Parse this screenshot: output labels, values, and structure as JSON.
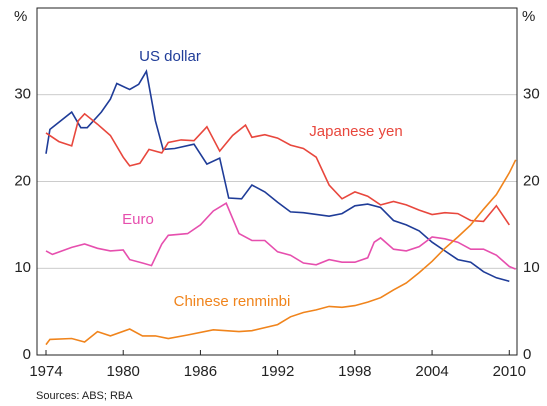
{
  "chart_data": {
    "type": "line",
    "y_unit": "%",
    "source": "Sources: ABS; RBA",
    "xlim": [
      1973.3,
      2010.6
    ],
    "xticks": [
      1974,
      1980,
      1986,
      1992,
      1998,
      2004,
      2010
    ],
    "ylim": [
      0,
      40
    ],
    "yticks": [
      0,
      10,
      20,
      30
    ],
    "grid": true,
    "series": [
      {
        "name": "US dollar",
        "color": "#1f3c98",
        "x": [
          1974,
          1974.3,
          1976,
          1976.7,
          1977.2,
          1978.3,
          1979,
          1979.5,
          1980.5,
          1981.2,
          1981.8,
          1982.5,
          1983.1,
          1984,
          1985.5,
          1986.5,
          1987.5,
          1988.2,
          1989.2,
          1990,
          1991,
          1992,
          1993,
          1994,
          1996,
          1997,
          1998,
          1999,
          2000,
          2001,
          2002,
          2003,
          2004,
          2005,
          2006,
          2007,
          2008,
          2009,
          2010
        ],
        "values": [
          23.2,
          26,
          28,
          26.2,
          26.2,
          28,
          29.5,
          31.3,
          30.6,
          31.2,
          32.7,
          27,
          23.7,
          23.8,
          24.3,
          22,
          22.7,
          18.1,
          18,
          19.6,
          18.8,
          17.6,
          16.5,
          16.4,
          16,
          16.3,
          17.2,
          17.4,
          17,
          15.5,
          15,
          14.3,
          13,
          12,
          11,
          10.7,
          9.6,
          8.9,
          8.5
        ]
      },
      {
        "name": "Japanese yen",
        "color": "#e8473d",
        "x": [
          1974,
          1975,
          1976,
          1976.5,
          1977,
          1978,
          1979,
          1980,
          1980.5,
          1981.3,
          1982,
          1983,
          1983.5,
          1984.5,
          1985.5,
          1986.5,
          1987.5,
          1988.5,
          1989.5,
          1990,
          1991,
          1992,
          1993,
          1994,
          1995,
          1996,
          1997,
          1998,
          1999,
          2000,
          2001,
          2002,
          2003,
          2004,
          2005,
          2006,
          2007,
          2008,
          2009,
          2010
        ],
        "values": [
          25.6,
          24.6,
          24.1,
          27,
          27.8,
          26.6,
          25.3,
          22.8,
          21.8,
          22.1,
          23.7,
          23.3,
          24.5,
          24.8,
          24.7,
          26.3,
          23.5,
          25.3,
          26.5,
          25.1,
          25.4,
          25,
          24.2,
          23.8,
          22.8,
          19.6,
          18,
          18.8,
          18.3,
          17.3,
          17.7,
          17.3,
          16.7,
          16.2,
          16.4,
          16.3,
          15.5,
          15.4,
          17.2,
          15
        ]
      },
      {
        "name": "Euro",
        "color": "#e64fae",
        "x": [
          1974,
          1974.5,
          1976,
          1977,
          1978,
          1979,
          1980,
          1980.5,
          1981.5,
          1982.2,
          1983,
          1983.5,
          1985,
          1986,
          1987,
          1988,
          1989,
          1990,
          1991,
          1992,
          1993,
          1994,
          1995,
          1996,
          1997,
          1998,
          1999,
          1999.5,
          2000,
          2001,
          2002,
          2003,
          2004,
          2005,
          2006,
          2007,
          2008,
          2009,
          2010,
          2010.5
        ],
        "values": [
          12,
          11.6,
          12.4,
          12.8,
          12.3,
          12,
          12.1,
          11,
          10.6,
          10.3,
          12.8,
          13.8,
          14,
          15,
          16.6,
          17.5,
          14,
          13.2,
          13.2,
          11.9,
          11.5,
          10.6,
          10.4,
          11,
          10.7,
          10.7,
          11.2,
          13,
          13.5,
          12.2,
          12,
          12.5,
          13.6,
          13.4,
          13,
          12.2,
          12.2,
          11.5,
          10.2,
          9.9
        ]
      },
      {
        "name": "Chinese renminbi",
        "color": "#f0841c",
        "x": [
          1974,
          1974.3,
          1976,
          1977,
          1978,
          1979,
          1980.5,
          1981.5,
          1982.5,
          1983.5,
          1985,
          1987,
          1989,
          1990,
          1992,
          1993,
          1994,
          1995,
          1996,
          1997,
          1998,
          1999,
          2000,
          2001,
          2002,
          2003,
          2004,
          2005,
          2006,
          2007,
          2008,
          2009,
          2010,
          2010.5
        ],
        "values": [
          1.2,
          1.8,
          1.9,
          1.5,
          2.7,
          2.2,
          3,
          2.2,
          2.2,
          1.9,
          2.3,
          2.9,
          2.7,
          2.8,
          3.5,
          4.4,
          4.9,
          5.2,
          5.6,
          5.5,
          5.7,
          6.1,
          6.6,
          7.5,
          8.3,
          9.5,
          10.8,
          12.3,
          13.6,
          15,
          16.8,
          18.5,
          21,
          22.5
        ]
      }
    ]
  }
}
